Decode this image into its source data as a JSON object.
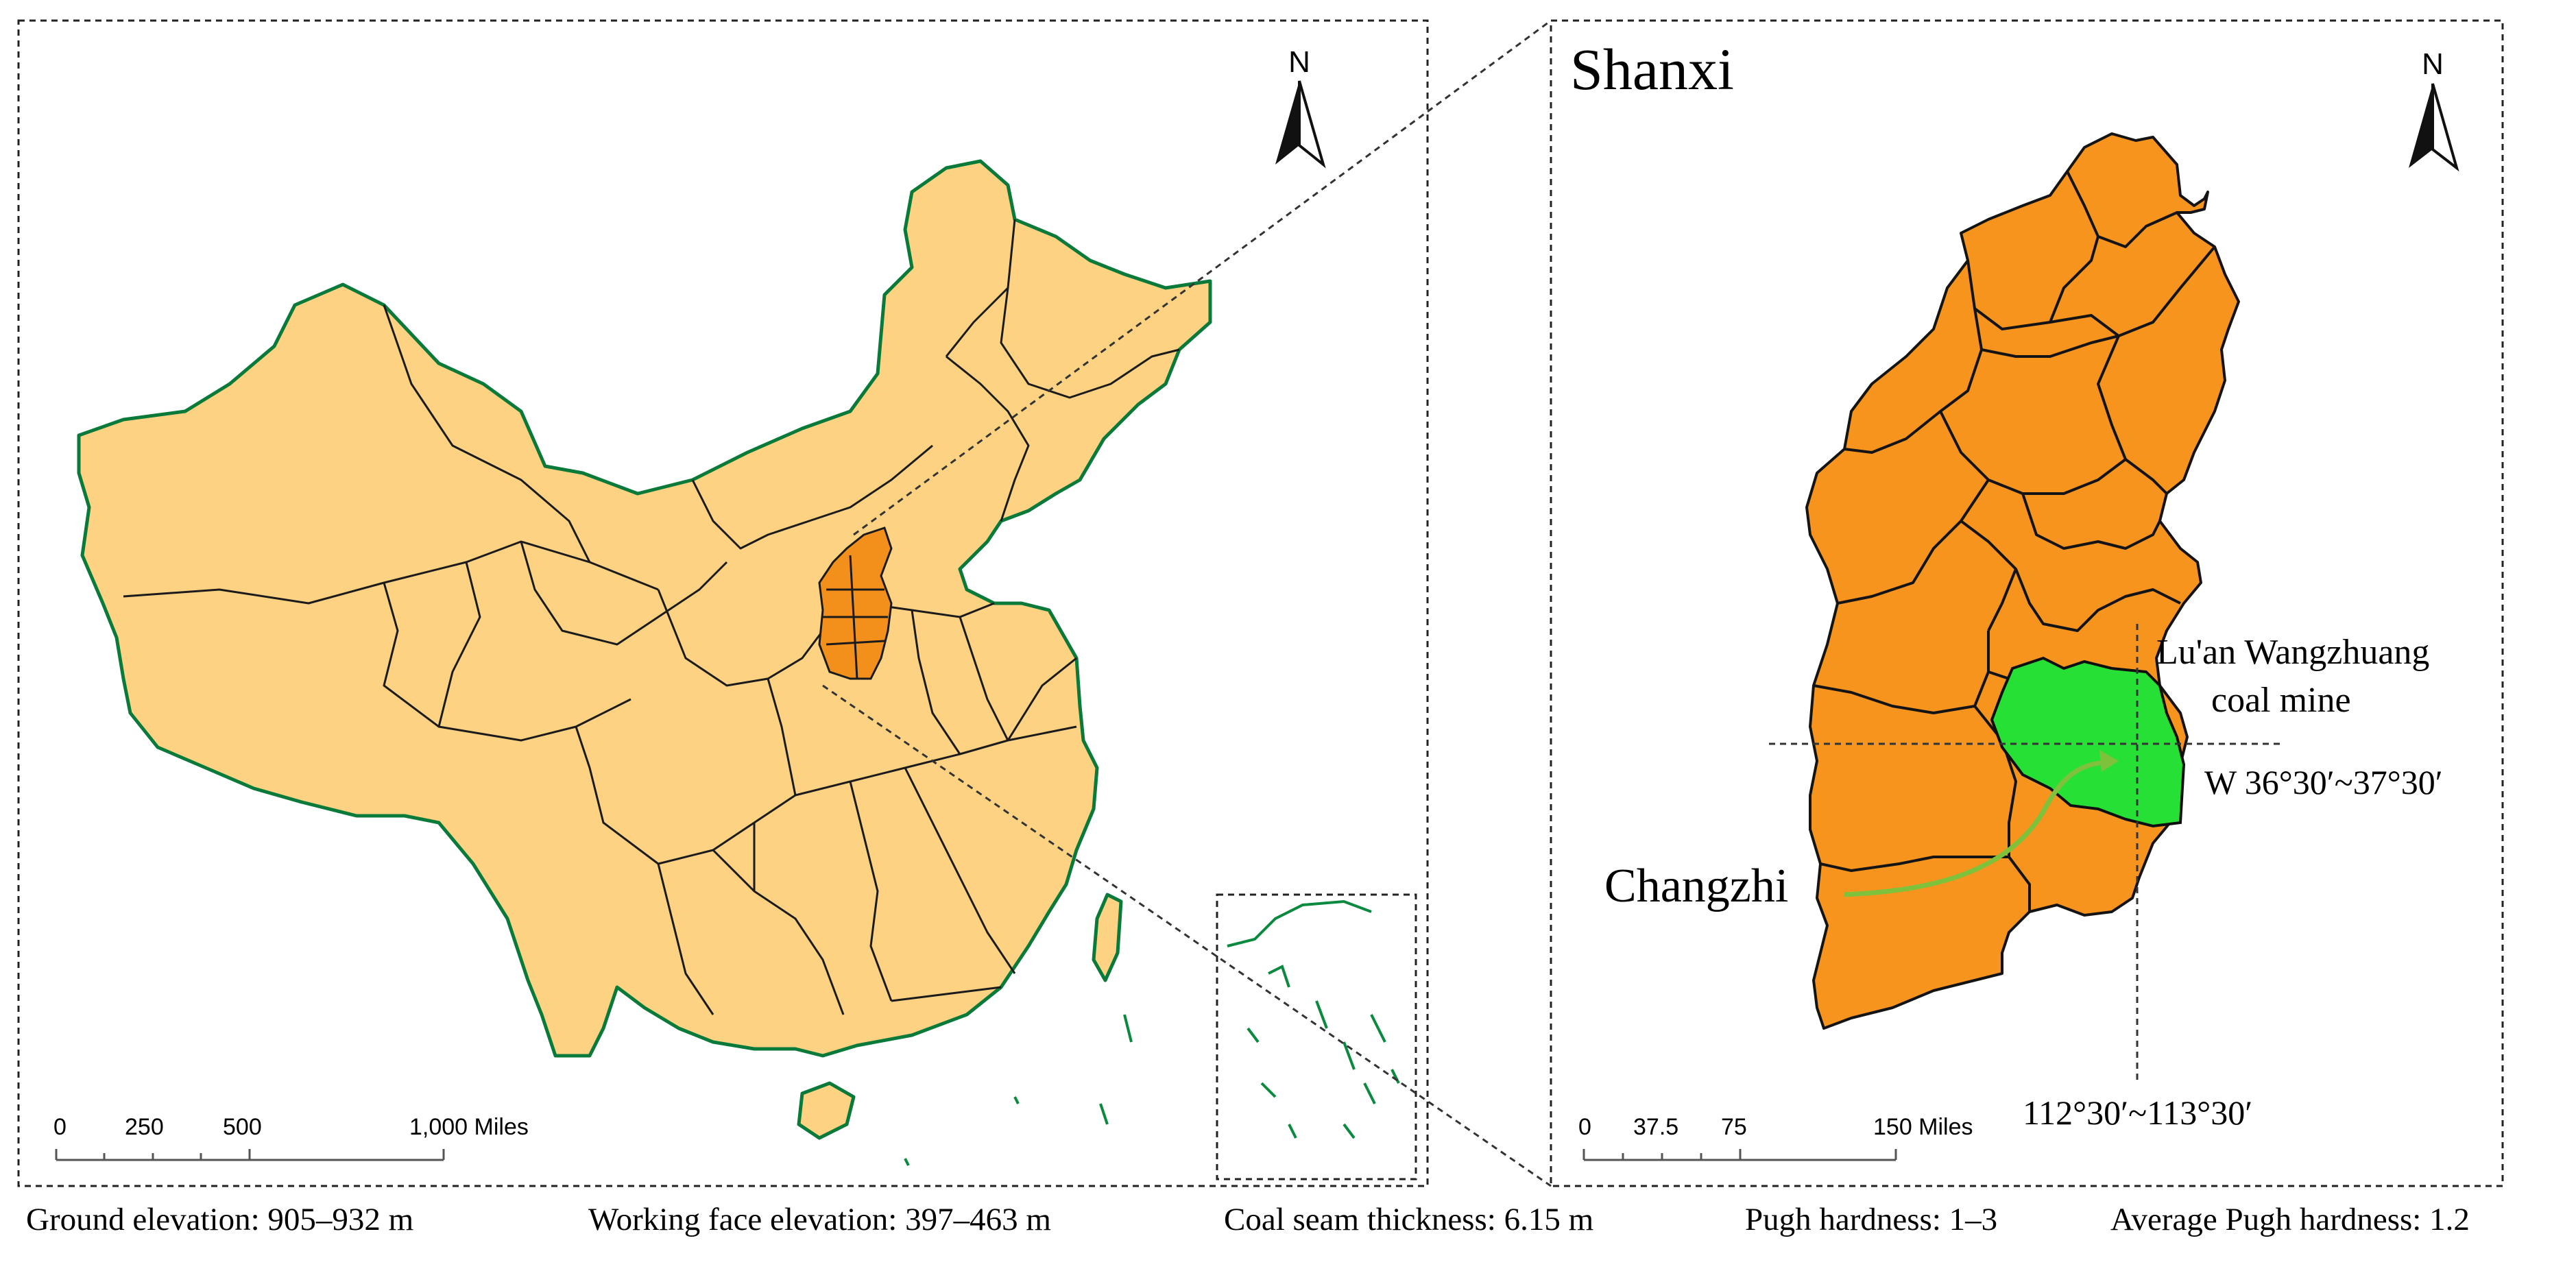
{
  "left_map": {
    "north_label": "N",
    "scale": {
      "ticks": [
        "0",
        "250",
        "500",
        "1,000 Miles"
      ]
    }
  },
  "right_map": {
    "title": "Shanxi",
    "north_label": "N",
    "mine_label_line1": "Lu'an Wangzhuang",
    "mine_label_line2": "coal mine",
    "latitude_label": "W 36°30′~37°30′",
    "longitude_label": "112°30′~113°30′",
    "city_label": "Changzhi",
    "scale": {
      "ticks": [
        "0",
        "37.5",
        "75",
        "150 Miles"
      ]
    }
  },
  "footer": {
    "ground_elevation": "Ground elevation: 905–932 m",
    "working_face_elevation": "Working face elevation: 397–463 m",
    "coal_seam_thickness": "Coal seam thickness: 6.15 m",
    "pugh_hardness": "Pugh hardness: 1–3",
    "average_pugh_hardness": "Average Pugh hardness: 1.2"
  },
  "colors": {
    "china_fill": "#fdd283",
    "shanxi_fill": "#f7941d",
    "mine_fill": "#27e036",
    "coastline": "#0a8a3e",
    "arrow": "#7ec23b"
  }
}
